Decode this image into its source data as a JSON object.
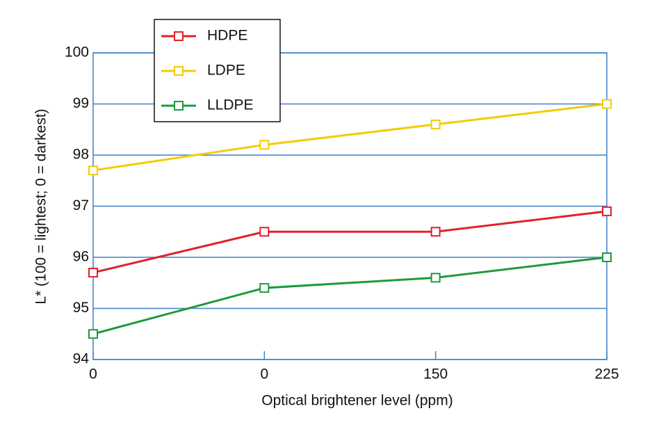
{
  "chart_data": {
    "type": "line",
    "x_label": "Optical brightener level (ppm)",
    "y_label": "L* (100 = lightest; 0 = darkest)",
    "categories": [
      "0",
      "0",
      "150",
      "225"
    ],
    "series": [
      {
        "name": "HDPE",
        "color": "#e0202e",
        "values": [
          95.7,
          96.5,
          96.5,
          96.9
        ]
      },
      {
        "name": "LDPE",
        "color": "#f2cc00",
        "values": [
          97.7,
          98.2,
          98.6,
          99.0
        ]
      },
      {
        "name": "LLDPE",
        "color": "#1d9a3c",
        "values": [
          94.5,
          95.4,
          95.6,
          96.0
        ]
      }
    ],
    "ylim": [
      94,
      100
    ],
    "yticks": [
      94,
      95,
      96,
      97,
      98,
      99,
      100
    ],
    "grid": true,
    "grid_color": "#3f7fc8",
    "legend": "upper left"
  }
}
